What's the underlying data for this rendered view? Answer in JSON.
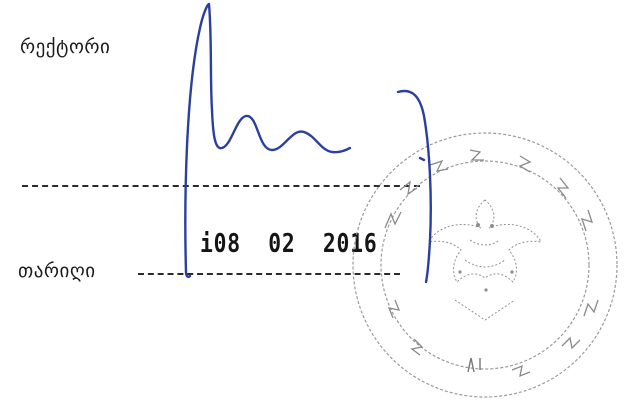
{
  "labels": {
    "rector": "რექტორი",
    "date": "თარიღი"
  },
  "date_stamp": "i08  02  2016",
  "colors": {
    "ink": "#2b3f9e",
    "seal": "#8a8a8a",
    "text": "#1a1a1a"
  },
  "icons": {
    "seal": "official-seal-icon",
    "signature": "handwritten-signature-icon"
  }
}
